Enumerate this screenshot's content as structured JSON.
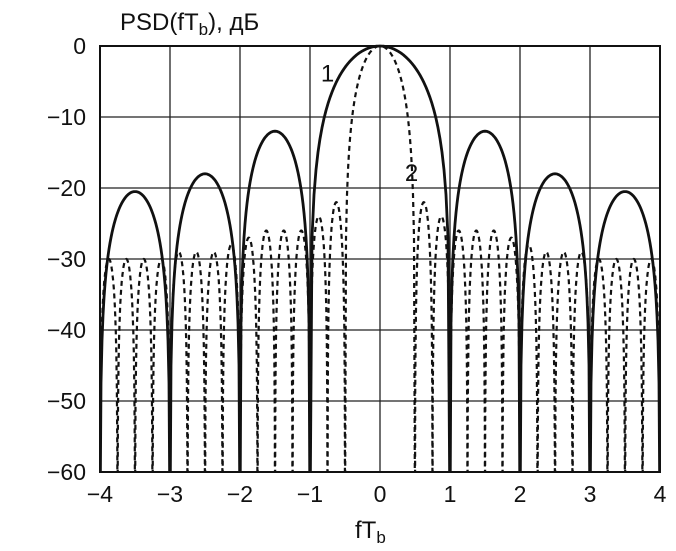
{
  "chart_data": {
    "type": "line",
    "ylabel": "PSD(fT",
    "ylabel_sub": "b",
    "ylabel_suffix": "), дБ",
    "xlabel": "fT",
    "xlabel_sub": "b",
    "xlim": [
      -4,
      4
    ],
    "ylim": [
      -60,
      0
    ],
    "xticks": [
      -4,
      -3,
      -2,
      -1,
      0,
      1,
      2,
      3,
      4
    ],
    "xtick_labels": [
      "−4",
      "−3",
      "−2",
      "−1",
      "0",
      "1",
      "2",
      "3",
      "4"
    ],
    "yticks": [
      0,
      -10,
      -20,
      -30,
      -40,
      -50,
      -60
    ],
    "ytick_labels": [
      "0",
      "−10",
      "−20",
      "−30",
      "−40",
      "−50",
      "−60"
    ],
    "grid": true,
    "series": [
      {
        "name": "1",
        "style": "solid",
        "lobes": [
          {
            "from": -4.0,
            "to": -3.0,
            "peak_x": -3.5,
            "peak_y": -20.5
          },
          {
            "from": -3.0,
            "to": -2.0,
            "peak_x": -2.5,
            "peak_y": -18
          },
          {
            "from": -2.0,
            "to": -1.0,
            "peak_x": -1.5,
            "peak_y": -12
          },
          {
            "from": -1.0,
            "to": 1.0,
            "peak_x": 0.0,
            "peak_y": 0
          },
          {
            "from": 1.0,
            "to": 2.0,
            "peak_x": 1.5,
            "peak_y": -12
          },
          {
            "from": 2.0,
            "to": 3.0,
            "peak_x": 2.5,
            "peak_y": -18
          },
          {
            "from": 3.0,
            "to": 4.0,
            "peak_x": 3.5,
            "peak_y": -20.5
          }
        ]
      },
      {
        "name": "2",
        "style": "dashed",
        "lobes": [
          {
            "from": -4.0,
            "to": -3.75,
            "peak_x": -3.875,
            "peak_y": -30
          },
          {
            "from": -3.75,
            "to": -3.5,
            "peak_x": -3.625,
            "peak_y": -30
          },
          {
            "from": -3.5,
            "to": -3.25,
            "peak_x": -3.375,
            "peak_y": -30
          },
          {
            "from": -3.25,
            "to": -3.0,
            "peak_x": -3.125,
            "peak_y": -30
          },
          {
            "from": -3.0,
            "to": -2.75,
            "peak_x": -2.875,
            "peak_y": -29
          },
          {
            "from": -2.75,
            "to": -2.5,
            "peak_x": -2.625,
            "peak_y": -29
          },
          {
            "from": -2.5,
            "to": -2.25,
            "peak_x": -2.375,
            "peak_y": -29
          },
          {
            "from": -2.25,
            "to": -2.0,
            "peak_x": -2.125,
            "peak_y": -28
          },
          {
            "from": -2.0,
            "to": -1.75,
            "peak_x": -1.875,
            "peak_y": -27
          },
          {
            "from": -1.75,
            "to": -1.5,
            "peak_x": -1.625,
            "peak_y": -26
          },
          {
            "from": -1.5,
            "to": -1.25,
            "peak_x": -1.375,
            "peak_y": -26
          },
          {
            "from": -1.25,
            "to": -1.0,
            "peak_x": -1.125,
            "peak_y": -26
          },
          {
            "from": -1.0,
            "to": -0.75,
            "peak_x": -0.875,
            "peak_y": -24
          },
          {
            "from": -0.75,
            "to": -0.5,
            "peak_x": -0.625,
            "peak_y": -22
          },
          {
            "from": -0.5,
            "to": 0.5,
            "peak_x": 0.0,
            "peak_y": 0
          },
          {
            "from": 0.5,
            "to": 0.75,
            "peak_x": 0.625,
            "peak_y": -22
          },
          {
            "from": 0.75,
            "to": 1.0,
            "peak_x": 0.875,
            "peak_y": -24
          },
          {
            "from": 1.0,
            "to": 1.25,
            "peak_x": 1.125,
            "peak_y": -26
          },
          {
            "from": 1.25,
            "to": 1.5,
            "peak_x": 1.375,
            "peak_y": -26
          },
          {
            "from": 1.5,
            "to": 1.75,
            "peak_x": 1.625,
            "peak_y": -26
          },
          {
            "from": 1.75,
            "to": 2.0,
            "peak_x": 1.875,
            "peak_y": -27
          },
          {
            "from": 2.0,
            "to": 2.25,
            "peak_x": 2.125,
            "peak_y": -28
          },
          {
            "from": 2.25,
            "to": 2.5,
            "peak_x": 2.375,
            "peak_y": -29
          },
          {
            "from": 2.5,
            "to": 2.75,
            "peak_x": 2.625,
            "peak_y": -29
          },
          {
            "from": 2.75,
            "to": 3.0,
            "peak_x": 2.875,
            "peak_y": -29
          },
          {
            "from": 3.0,
            "to": 3.25,
            "peak_x": 3.125,
            "peak_y": -30
          },
          {
            "from": 3.25,
            "to": 3.5,
            "peak_x": 3.375,
            "peak_y": -30
          },
          {
            "from": 3.5,
            "to": 3.75,
            "peak_x": 3.625,
            "peak_y": -30
          },
          {
            "from": 3.75,
            "to": 4.0,
            "peak_x": 3.875,
            "peak_y": -30
          }
        ]
      }
    ],
    "annotations": [
      {
        "text": "1",
        "x": -0.75,
        "y": -5,
        "series": "1"
      },
      {
        "text": "2",
        "x": 0.45,
        "y": -19,
        "series": "2"
      }
    ]
  }
}
